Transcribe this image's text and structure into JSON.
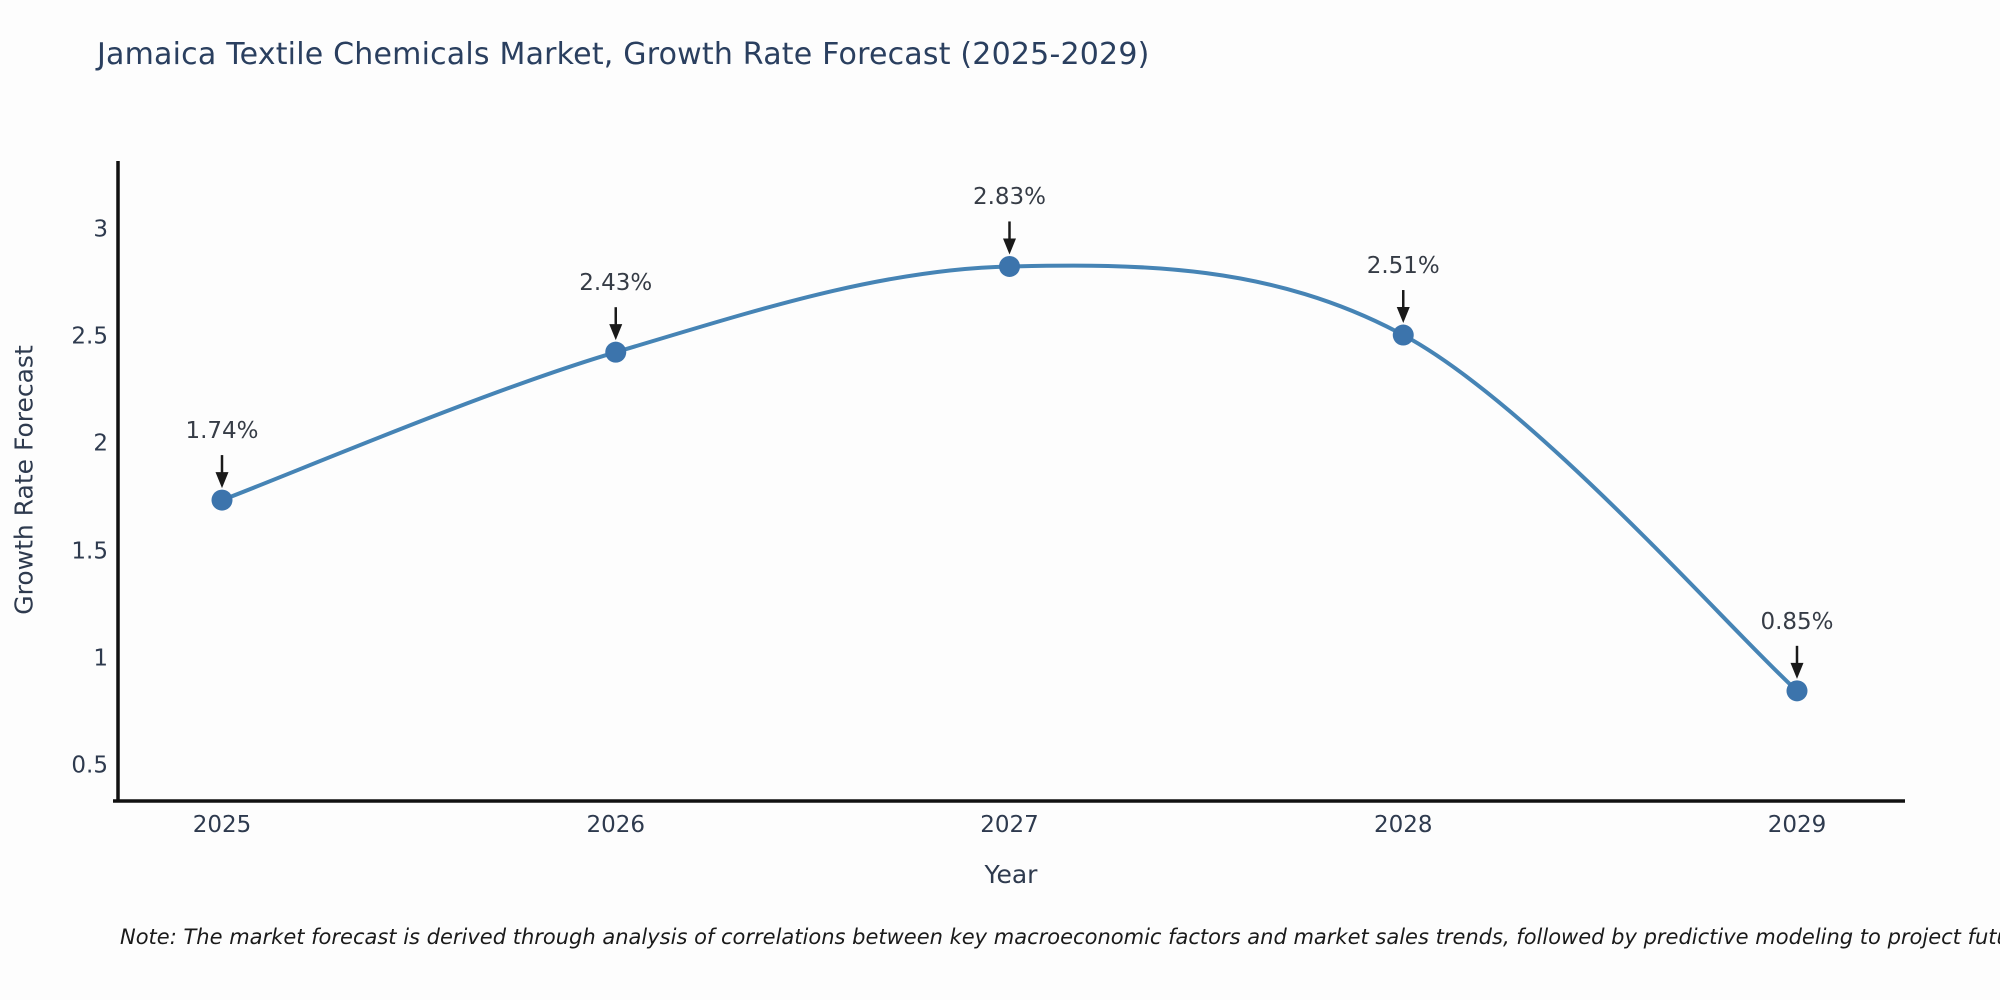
{
  "title": "Jamaica Textile Chemicals Market, Growth Rate Forecast (2025-2029)",
  "note": "Note: The market forecast is derived through analysis of correlations between key macroeconomic factors and market sales trends, followed by predictive modeling to project future sales",
  "chart_data": {
    "type": "line",
    "title": "Jamaica Textile Chemicals Market, Growth Rate Forecast (2025-2029)",
    "x": [
      2025,
      2026,
      2027,
      2028,
      2029
    ],
    "series": [
      {
        "name": "Growth Rate Forecast",
        "values": [
          1.74,
          2.43,
          2.83,
          2.51,
          0.85
        ]
      }
    ],
    "point_labels": [
      "1.74%",
      "2.43%",
      "2.83%",
      "2.51%",
      "0.85%"
    ],
    "xlabel": "Year",
    "ylabel": "Growth Rate Forecast",
    "yticks": [
      0.5,
      1,
      1.5,
      2,
      2.5,
      3
    ],
    "ylim": [
      0.336,
      3.322
    ],
    "line_shape": "spline",
    "grid": false,
    "legend": "none",
    "annotations_arrow": "down-arrow",
    "colors": {
      "line": "#4684b5",
      "marker": "#3c74ac",
      "axis": "#111111",
      "title_text": "#2a3f5f",
      "tick_text": "#2e3a4e",
      "annotation_text": "#363c46",
      "arrow": "#1a1a1a",
      "background": "#fdfdfd"
    }
  }
}
